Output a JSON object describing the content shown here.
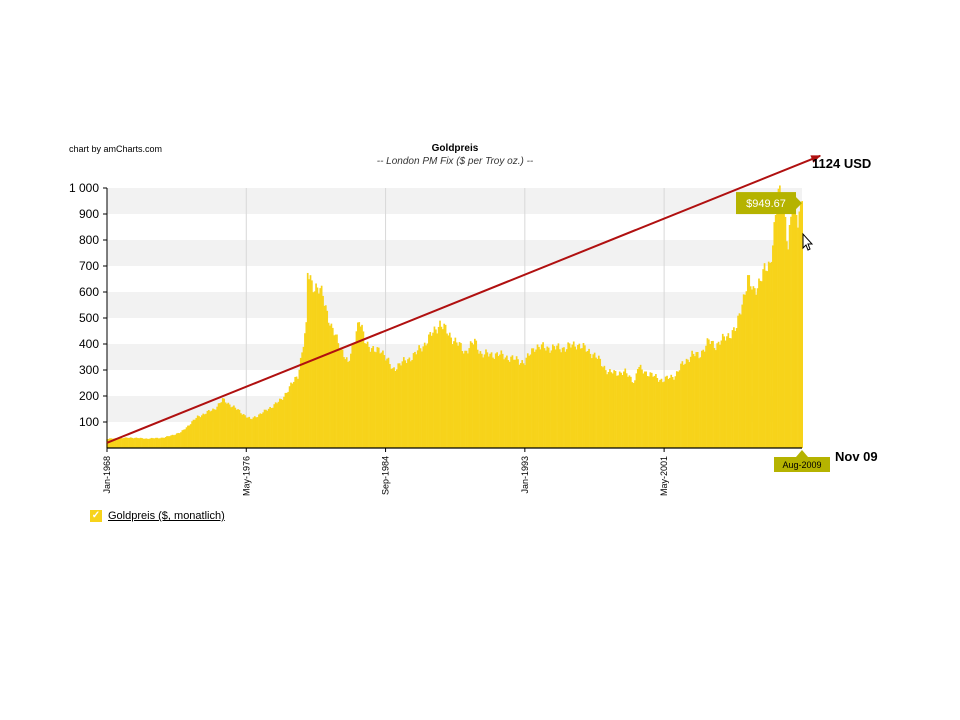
{
  "header": {
    "credit": "chart by amCharts.com",
    "title": "Goldpreis",
    "subtitle": "-- London PM Fix ($ per Troy oz.) --"
  },
  "chart_data": {
    "type": "bar",
    "title": "Goldpreis",
    "subtitle": "-- London PM Fix ($ per Troy oz.) --",
    "ylim": [
      0,
      1000
    ],
    "y_ticks": [
      100,
      200,
      300,
      400,
      500,
      600,
      700,
      800,
      900,
      1000
    ],
    "y_tick_labels": [
      "100",
      "200",
      "300",
      "400",
      "500",
      "600",
      "700",
      "800",
      "900",
      "1 000"
    ],
    "x_ticks": [
      "Jan-1968",
      "May-1976",
      "Sep-1984",
      "Jan-1993",
      "May-2001"
    ],
    "x_start": "Jan-1968",
    "x_end": "Aug-2009",
    "grid": true,
    "color": "#f7d31a",
    "series": [
      {
        "name": "Goldpreis ($, monatlich)",
        "anchors": [
          [
            "1968-01",
            35
          ],
          [
            "1969-06",
            40
          ],
          [
            "1970-06",
            36
          ],
          [
            "1971-06",
            40
          ],
          [
            "1972-06",
            60
          ],
          [
            "1973-06",
            120
          ],
          [
            "1974-06",
            150
          ],
          [
            "1974-12",
            185
          ],
          [
            "1975-06",
            165
          ],
          [
            "1976-08",
            110
          ],
          [
            "1977-06",
            140
          ],
          [
            "1978-06",
            185
          ],
          [
            "1979-06",
            280
          ],
          [
            "1979-12",
            460
          ],
          [
            "1980-01",
            675
          ],
          [
            "1980-06",
            620
          ],
          [
            "1980-12",
            590
          ],
          [
            "1981-06",
            460
          ],
          [
            "1981-12",
            400
          ],
          [
            "1982-06",
            320
          ],
          [
            "1982-12",
            450
          ],
          [
            "1983-02",
            490
          ],
          [
            "1983-06",
            415
          ],
          [
            "1984-01",
            370
          ],
          [
            "1984-06",
            380
          ],
          [
            "1985-02",
            300
          ],
          [
            "1985-06",
            320
          ],
          [
            "1986-01",
            340
          ],
          [
            "1986-06",
            360
          ],
          [
            "1987-01",
            400
          ],
          [
            "1987-12",
            480
          ],
          [
            "1988-06",
            440
          ],
          [
            "1989-06",
            370
          ],
          [
            "1990-01",
            410
          ],
          [
            "1990-06",
            360
          ],
          [
            "1991-06",
            360
          ],
          [
            "1992-06",
            340
          ],
          [
            "1993-01",
            330
          ],
          [
            "1993-08",
            390
          ],
          [
            "1994-06",
            385
          ],
          [
            "1995-06",
            385
          ],
          [
            "1996-02",
            400
          ],
          [
            "1996-12",
            370
          ],
          [
            "1997-06",
            340
          ],
          [
            "1998-01",
            290
          ],
          [
            "1999-01",
            290
          ],
          [
            "1999-08",
            255
          ],
          [
            "1999-10",
            310
          ],
          [
            "2000-06",
            285
          ],
          [
            "2001-04",
            260
          ],
          [
            "2002-01",
            280
          ],
          [
            "2002-06",
            320
          ],
          [
            "2003-01",
            360
          ],
          [
            "2003-06",
            355
          ],
          [
            "2004-01",
            410
          ],
          [
            "2004-06",
            395
          ],
          [
            "2005-01",
            425
          ],
          [
            "2005-09",
            460
          ],
          [
            "2006-01",
            560
          ],
          [
            "2006-05",
            650
          ],
          [
            "2006-09",
            600
          ],
          [
            "2007-03",
            660
          ],
          [
            "2007-09",
            710
          ],
          [
            "2008-01",
            890
          ],
          [
            "2008-03",
            970
          ],
          [
            "2008-07",
            940
          ],
          [
            "2008-10",
            780
          ],
          [
            "2009-02",
            960
          ],
          [
            "2009-05",
            890
          ],
          [
            "2009-08",
            949.67
          ]
        ]
      }
    ],
    "last_value_label": "$949.67",
    "last_date_label": "Aug-2009",
    "legend_position": "bottom-left",
    "trend_line": {
      "color": "#b01010",
      "from": {
        "date": "1968-01",
        "value": 20
      },
      "to": {
        "date": "2009-11",
        "value": 1124
      }
    }
  },
  "annotations": {
    "top_right": "1124 USD",
    "bottom_right": "Nov 09"
  },
  "legend": {
    "check": "✓",
    "label": "Goldpreis ($, monatlich)"
  }
}
